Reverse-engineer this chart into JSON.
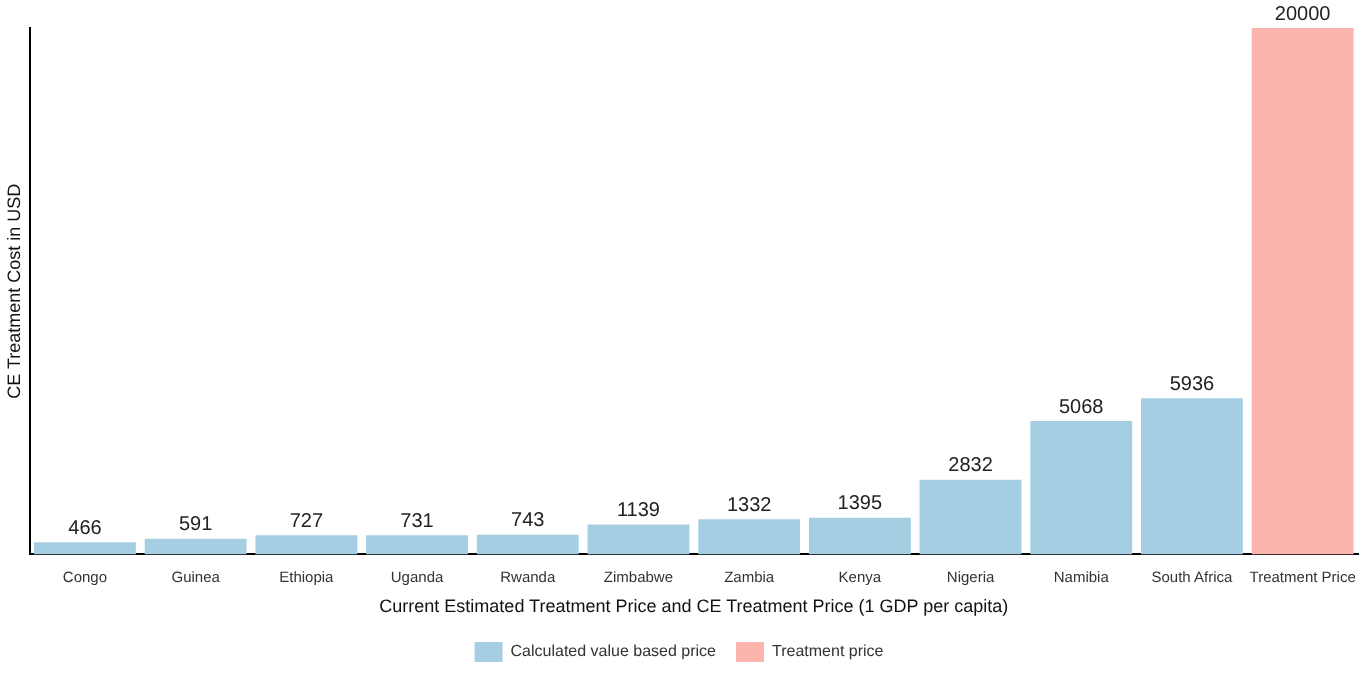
{
  "chart_data": {
    "type": "bar",
    "xlabel": "Current Estimated Treatment Price and CE Treatment Price (1 GDP per capita)",
    "ylabel": "CE Treatment Cost in USD",
    "categories": [
      "Congo",
      "Guinea",
      "Ethiopia",
      "Uganda",
      "Rwanda",
      "Zimbabwe",
      "Zambia",
      "Kenya",
      "Nigeria",
      "Namibia",
      "South Africa",
      "Treatment Price"
    ],
    "series": [
      {
        "name": "Calculated value based price",
        "color": "#a6cee3",
        "values": [
          466,
          591,
          727,
          731,
          743,
          1139,
          1332,
          1395,
          2832,
          5068,
          5936,
          null
        ]
      },
      {
        "name": "Treatment price",
        "color": "#fbb4ae",
        "values": [
          null,
          null,
          null,
          null,
          null,
          null,
          null,
          null,
          null,
          null,
          null,
          20000
        ]
      }
    ],
    "data_labels": true,
    "legend": "bottom",
    "grid": false,
    "tick_labels": "x"
  }
}
